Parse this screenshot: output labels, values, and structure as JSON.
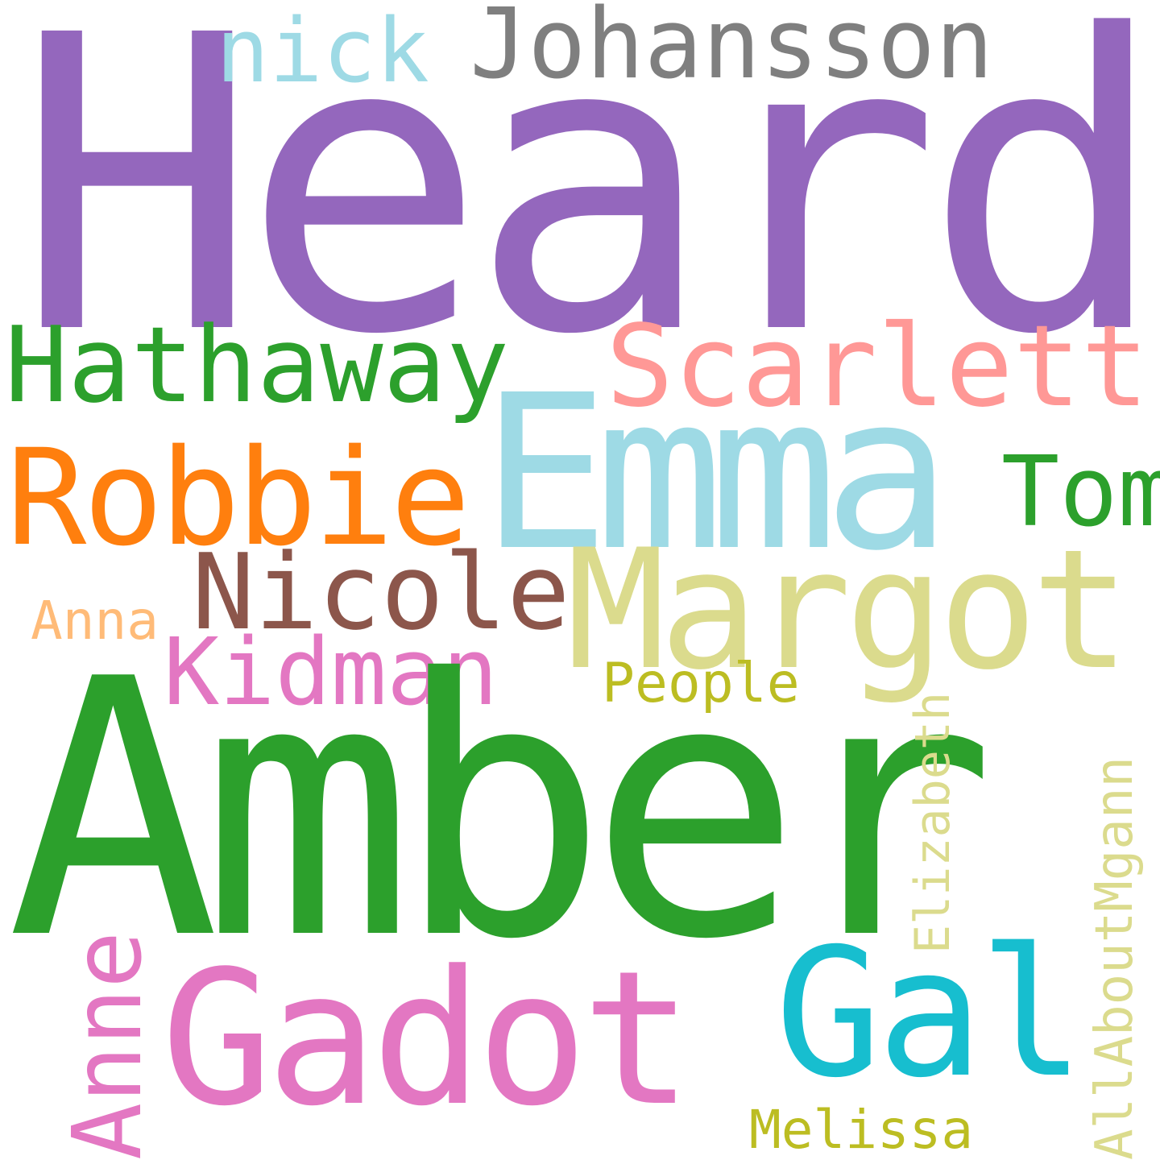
{
  "words": {
    "heard": {
      "text": "Heard",
      "color": "#9467bd"
    },
    "nick": {
      "text": "nick",
      "color": "#9edae5"
    },
    "johansson": {
      "text": "Johansson",
      "color": "#7f7f7f"
    },
    "hathaway": {
      "text": "Hathaway",
      "color": "#2ca02c"
    },
    "scarlett": {
      "text": "Scarlett",
      "color": "#ff9896"
    },
    "emma": {
      "text": "Emma",
      "color": "#9edae5"
    },
    "robbie": {
      "text": "Robbie",
      "color": "#ff7f0e"
    },
    "tom": {
      "text": "Tom",
      "color": "#2ca02c"
    },
    "nicole": {
      "text": "Nicole",
      "color": "#8c564b"
    },
    "margot": {
      "text": "Margot",
      "color": "#dbdb8d"
    },
    "anna": {
      "text": "Anna",
      "color": "#ffbb78"
    },
    "kidman": {
      "text": "Kidman",
      "color": "#e377c2"
    },
    "people": {
      "text": "People",
      "color": "#bcbd22"
    },
    "amber": {
      "text": "Amber",
      "color": "#2ca02c"
    },
    "gadot": {
      "text": "Gadot",
      "color": "#e377c2"
    },
    "gal": {
      "text": "Gal",
      "color": "#17becf"
    },
    "melissa": {
      "text": "Melissa",
      "color": "#bcbd22"
    },
    "anne": {
      "text": "Anne",
      "color": "#e377c2"
    },
    "elizabeth": {
      "text": "Elizabeth",
      "color": "#dbdb8d"
    },
    "allaboutmgann": {
      "text": "AllAboutMgann",
      "color": "#dbdb8d"
    }
  }
}
